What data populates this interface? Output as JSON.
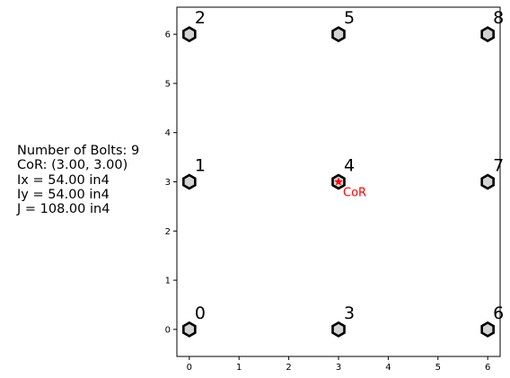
{
  "summary": {
    "num_bolts": "Number of Bolts: 9",
    "cor": "CoR: (3.00, 3.00)",
    "ix": "Ix = 54.00 in4",
    "iy": "Iy = 54.00 in4",
    "j": "J = 108.00 in4"
  },
  "chart_data": {
    "type": "scatter",
    "title": "",
    "xlabel": "",
    "ylabel": "",
    "xlim": [
      -0.25,
      6.25
    ],
    "ylim": [
      -0.55,
      6.55
    ],
    "xticks": [
      0,
      1,
      2,
      3,
      4,
      5,
      6
    ],
    "yticks": [
      0,
      1,
      2,
      3,
      4,
      5,
      6
    ],
    "grid": false,
    "marker": "hexagon",
    "marker_face_color": "#d3d3d3",
    "marker_edge_color": "#000000",
    "points": [
      {
        "label": "0",
        "x": 0,
        "y": 0
      },
      {
        "label": "1",
        "x": 0,
        "y": 3
      },
      {
        "label": "2",
        "x": 0,
        "y": 6
      },
      {
        "label": "3",
        "x": 3,
        "y": 0
      },
      {
        "label": "4",
        "x": 3,
        "y": 3
      },
      {
        "label": "5",
        "x": 3,
        "y": 6
      },
      {
        "label": "6",
        "x": 6,
        "y": 0
      },
      {
        "label": "7",
        "x": 6,
        "y": 3
      },
      {
        "label": "8",
        "x": 6,
        "y": 6
      }
    ],
    "center_of_rotation": {
      "label": "CoR",
      "x": 3,
      "y": 3,
      "marker": "star",
      "color": "#ff0000"
    }
  }
}
